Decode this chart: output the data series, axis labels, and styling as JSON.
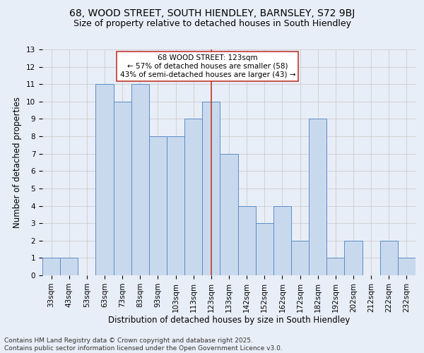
{
  "title1": "68, WOOD STREET, SOUTH HIENDLEY, BARNSLEY, S72 9BJ",
  "title2": "Size of property relative to detached houses in South Hiendley",
  "xlabel": "Distribution of detached houses by size in South Hiendley",
  "ylabel": "Number of detached properties",
  "footnote": "Contains HM Land Registry data © Crown copyright and database right 2025.\nContains public sector information licensed under the Open Government Licence v3.0.",
  "bar_labels": [
    "33sqm",
    "43sqm",
    "53sqm",
    "63sqm",
    "73sqm",
    "83sqm",
    "93sqm",
    "103sqm",
    "113sqm",
    "123sqm",
    "133sqm",
    "142sqm",
    "152sqm",
    "162sqm",
    "172sqm",
    "182sqm",
    "192sqm",
    "202sqm",
    "212sqm",
    "222sqm",
    "232sqm"
  ],
  "bar_values": [
    1,
    1,
    0,
    11,
    10,
    11,
    8,
    8,
    9,
    10,
    7,
    4,
    3,
    4,
    2,
    9,
    1,
    2,
    0,
    2,
    1
  ],
  "bar_color": "#c9d9ed",
  "bar_edge_color": "#5b8cc8",
  "highlight_index": 9,
  "highlight_line_color": "#c0392b",
  "annotation_text": "68 WOOD STREET: 123sqm\n← 57% of detached houses are smaller (58)\n43% of semi-detached houses are larger (43) →",
  "annotation_box_color": "white",
  "annotation_box_edge": "#c0392b",
  "ylim": [
    0,
    13
  ],
  "yticks": [
    0,
    1,
    2,
    3,
    4,
    5,
    6,
    7,
    8,
    9,
    10,
    11,
    12,
    13
  ],
  "grid_color": "#cccccc",
  "background_color": "#e8eef7",
  "title1_fontsize": 10,
  "title2_fontsize": 9,
  "xlabel_fontsize": 8.5,
  "ylabel_fontsize": 8.5,
  "tick_fontsize": 7.5,
  "annotation_fontsize": 7.5,
  "footnote_fontsize": 6.5
}
